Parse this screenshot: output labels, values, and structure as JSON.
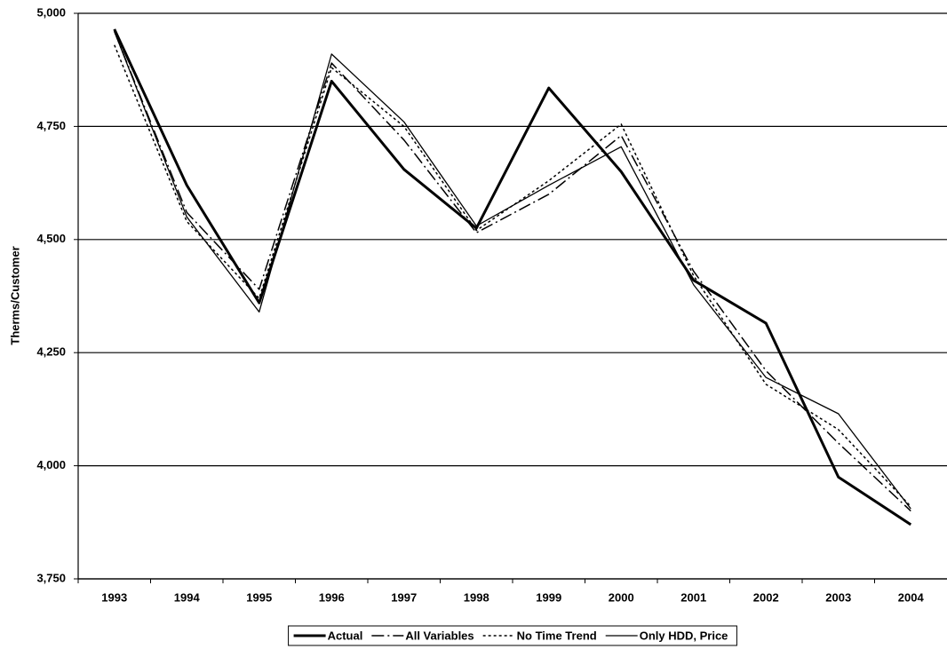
{
  "chart_data": {
    "type": "line",
    "y_label": "Therms/Customer",
    "categories": [
      "1993",
      "1994",
      "1995",
      "1996",
      "1997",
      "1998",
      "1999",
      "2000",
      "2001",
      "2002",
      "2003",
      "2004"
    ],
    "ylim": [
      3750,
      5000
    ],
    "yticks": [
      {
        "value": 3750,
        "label": "3,750"
      },
      {
        "value": 4000,
        "label": "4,000"
      },
      {
        "value": 4250,
        "label": "4,250"
      },
      {
        "value": 4500,
        "label": "4,500"
      },
      {
        "value": 4750,
        "label": "4,750"
      },
      {
        "value": 5000,
        "label": "5,000"
      }
    ],
    "grid": true,
    "legend": "bottom",
    "series": [
      {
        "name": "Actual",
        "color": "#000000",
        "width": 3,
        "dash": "solid",
        "values": [
          4965,
          4620,
          4360,
          4850,
          4655,
          4525,
          4835,
          4650,
          4410,
          4315,
          3975,
          3870
        ]
      },
      {
        "name": "All Variables",
        "color": "#000000",
        "width": 1.5,
        "dash": "dashdot",
        "values": [
          4960,
          4560,
          4390,
          4890,
          4720,
          4515,
          4600,
          4730,
          4430,
          4210,
          4050,
          3900
        ]
      },
      {
        "name": "No Time Trend",
        "color": "#000000",
        "width": 1.5,
        "dash": "dot",
        "values": [
          4930,
          4540,
          4370,
          4880,
          4750,
          4520,
          4630,
          4755,
          4420,
          4180,
          4080,
          3910
        ]
      },
      {
        "name": "Only HDD, Price",
        "color": "#000000",
        "width": 1.3,
        "dash": "solid",
        "values": [
          4960,
          4550,
          4340,
          4910,
          4760,
          4530,
          4620,
          4705,
          4400,
          4195,
          4115,
          3905
        ]
      }
    ]
  }
}
